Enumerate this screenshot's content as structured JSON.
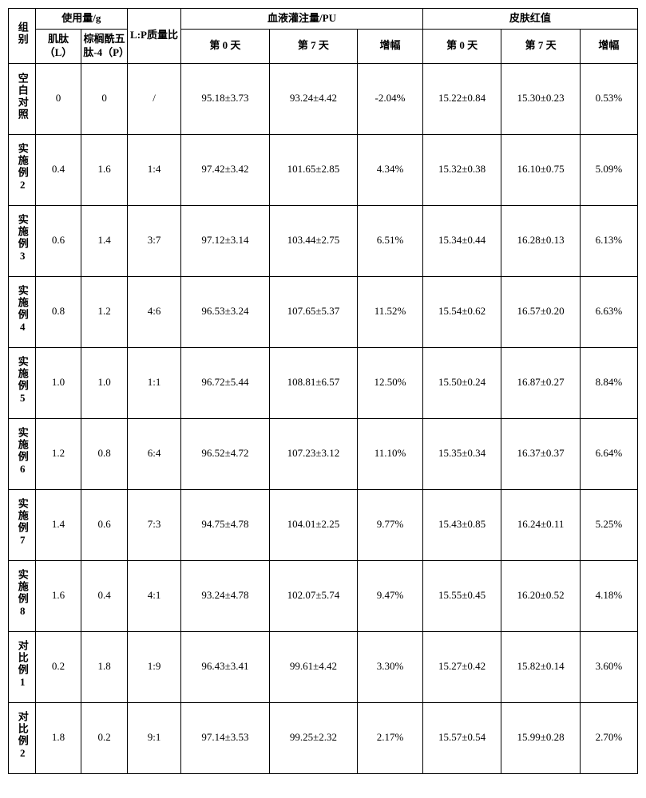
{
  "table": {
    "type": "table",
    "background_color": "#ffffff",
    "border_color": "#000000",
    "font_family": "SimSun",
    "header_fontsize": 13,
    "cell_fontsize": 13,
    "header": {
      "group": "组别",
      "usage_group": "使用量/g",
      "L": "肌肽（L）",
      "P": "棕榈酰五肽-4（P）",
      "LP": "L:P质量比",
      "blood_group": "血液灌注量/PU",
      "skin_group": "皮肤红值",
      "day0": "第 0 天",
      "day7": "第 7 天",
      "inc": "增幅"
    },
    "rows": [
      {
        "group": "空白对照",
        "L": "0",
        "P": "0",
        "LP": "/",
        "b0": "95.18±3.73",
        "b7": "93.24±4.42",
        "binc": "-2.04%",
        "s0": "15.22±0.84",
        "s7": "15.30±0.23",
        "sinc": "0.53%"
      },
      {
        "group": "实施例2",
        "L": "0.4",
        "P": "1.6",
        "LP": "1:4",
        "b0": "97.42±3.42",
        "b7": "101.65±2.85",
        "binc": "4.34%",
        "s0": "15.32±0.38",
        "s7": "16.10±0.75",
        "sinc": "5.09%"
      },
      {
        "group": "实施例3",
        "L": "0.6",
        "P": "1.4",
        "LP": "3:7",
        "b0": "97.12±3.14",
        "b7": "103.44±2.75",
        "binc": "6.51%",
        "s0": "15.34±0.44",
        "s7": "16.28±0.13",
        "sinc": "6.13%"
      },
      {
        "group": "实施例4",
        "L": "0.8",
        "P": "1.2",
        "LP": "4:6",
        "b0": "96.53±3.24",
        "b7": "107.65±5.37",
        "binc": "11.52%",
        "s0": "15.54±0.62",
        "s7": "16.57±0.20",
        "sinc": "6.63%"
      },
      {
        "group": "实施例5",
        "L": "1.0",
        "P": "1.0",
        "LP": "1:1",
        "b0": "96.72±5.44",
        "b7": "108.81±6.57",
        "binc": "12.50%",
        "s0": "15.50±0.24",
        "s7": "16.87±0.27",
        "sinc": "8.84%"
      },
      {
        "group": "实施例6",
        "L": "1.2",
        "P": "0.8",
        "LP": "6:4",
        "b0": "96.52±4.72",
        "b7": "107.23±3.12",
        "binc": "11.10%",
        "s0": "15.35±0.34",
        "s7": "16.37±0.37",
        "sinc": "6.64%"
      },
      {
        "group": "实施例7",
        "L": "1.4",
        "P": "0.6",
        "LP": "7:3",
        "b0": "94.75±4.78",
        "b7": "104.01±2.25",
        "binc": "9.77%",
        "s0": "15.43±0.85",
        "s7": "16.24±0.11",
        "sinc": "5.25%"
      },
      {
        "group": "实施例8",
        "L": "1.6",
        "P": "0.4",
        "LP": "4:1",
        "b0": "93.24±4.78",
        "b7": "102.07±5.74",
        "binc": "9.47%",
        "s0": "15.55±0.45",
        "s7": "16.20±0.52",
        "sinc": "4.18%"
      },
      {
        "group": "对比例1",
        "L": "0.2",
        "P": "1.8",
        "LP": "1:9",
        "b0": "96.43±3.41",
        "b7": "99.61±4.42",
        "binc": "3.30%",
        "s0": "15.27±0.42",
        "s7": "15.82±0.14",
        "sinc": "3.60%"
      },
      {
        "group": "对比例2",
        "L": "1.8",
        "P": "0.2",
        "LP": "9:1",
        "b0": "97.14±3.53",
        "b7": "99.25±2.32",
        "binc": "2.17%",
        "s0": "15.57±0.54",
        "s7": "15.99±0.28",
        "sinc": "2.70%"
      }
    ]
  }
}
